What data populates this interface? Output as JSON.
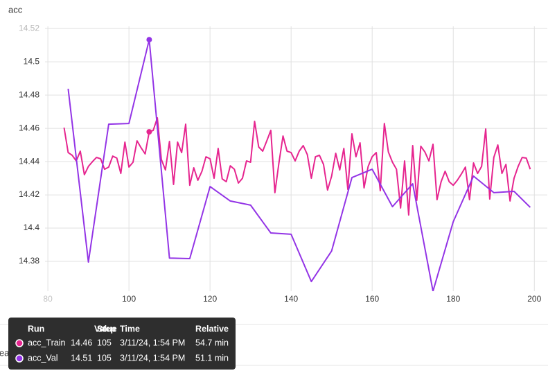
{
  "chart_data": {
    "type": "line",
    "title": "acc",
    "xlim": [
      79.3,
      203.2
    ],
    "xticks": [
      80,
      100,
      120,
      140,
      160,
      180,
      200
    ],
    "ylim": [
      14.3621,
      14.5213
    ],
    "yticks": [
      14.38,
      14.4,
      14.42,
      14.44,
      14.46,
      14.48,
      14.5,
      14.52
    ],
    "grid": true,
    "series": [
      {
        "name": "acc_Train",
        "color": "#e6258f",
        "x": [
          84,
          85,
          86,
          87,
          88,
          89,
          90,
          91,
          92,
          93,
          94,
          95,
          96,
          97,
          98,
          99,
          100,
          101,
          102,
          103,
          104,
          105,
          106,
          107,
          108,
          109,
          110,
          111,
          112,
          113,
          114,
          115,
          116,
          117,
          118,
          119,
          120,
          121,
          122,
          123,
          124,
          125,
          126,
          127,
          128,
          129,
          130,
          131,
          132,
          133,
          134,
          135,
          136,
          137,
          138,
          139,
          140,
          141,
          142,
          143,
          144,
          145,
          146,
          147,
          148,
          149,
          150,
          151,
          152,
          153,
          154,
          155,
          156,
          157,
          158,
          159,
          160,
          161,
          162,
          163,
          164,
          165,
          166,
          167,
          168,
          169,
          170,
          171,
          172,
          173,
          174,
          175,
          176,
          177,
          178,
          179,
          180,
          181,
          182,
          183,
          184,
          185,
          186,
          187,
          188,
          189,
          190,
          191,
          192,
          193,
          194,
          195,
          196,
          197,
          198,
          199
        ],
        "values": [
          14.4604,
          14.4454,
          14.4438,
          14.4404,
          14.4463,
          14.4321,
          14.4371,
          14.44,
          14.4425,
          14.4417,
          14.4354,
          14.4367,
          14.4433,
          14.4421,
          14.4329,
          14.4517,
          14.4367,
          14.4396,
          14.4525,
          14.4483,
          14.4446,
          14.4579,
          14.4588,
          14.4663,
          14.4413,
          14.435,
          14.4521,
          14.4263,
          14.4517,
          14.4454,
          14.4625,
          14.4258,
          14.4363,
          14.4288,
          14.4342,
          14.4429,
          14.4417,
          14.43,
          14.4479,
          14.4296,
          14.4279,
          14.4375,
          14.4354,
          14.4271,
          14.43,
          14.4404,
          14.4396,
          14.4642,
          14.4488,
          14.4463,
          14.4525,
          14.4588,
          14.4213,
          14.4392,
          14.4554,
          14.4463,
          14.4454,
          14.4404,
          14.4463,
          14.4496,
          14.4442,
          14.43,
          14.4429,
          14.4438,
          14.4383,
          14.4229,
          14.4313,
          14.445,
          14.435,
          14.4479,
          14.4233,
          14.4567,
          14.4429,
          14.4513,
          14.4242,
          14.4371,
          14.4429,
          14.4454,
          14.4225,
          14.4629,
          14.4458,
          14.4396,
          14.4354,
          14.4121,
          14.4404,
          14.4079,
          14.4496,
          14.4167,
          14.4492,
          14.4458,
          14.4404,
          14.4504,
          14.4171,
          14.4279,
          14.4342,
          14.4279,
          14.4258,
          14.4288,
          14.4325,
          14.4367,
          14.4171,
          14.4392,
          14.4329,
          14.4371,
          14.4596,
          14.4175,
          14.4425,
          14.45,
          14.4329,
          14.4383,
          14.4163,
          14.43,
          14.4371,
          14.4425,
          14.4421,
          14.4354
        ]
      },
      {
        "name": "acc_Val",
        "color": "#9334e6",
        "x": [
          85,
          90,
          95,
          100,
          105,
          110,
          115,
          120,
          125,
          130,
          135,
          140,
          145,
          150,
          155,
          160,
          165,
          170,
          175,
          180,
          185,
          190,
          195,
          199
        ],
        "values": [
          14.4838,
          14.3796,
          14.4625,
          14.4629,
          14.5133,
          14.382,
          14.3817,
          14.425,
          14.4163,
          14.4138,
          14.3971,
          14.3963,
          14.3679,
          14.3863,
          14.4304,
          14.4354,
          14.4129,
          14.4267,
          14.3621,
          14.4038,
          14.4313,
          14.4213,
          14.4221,
          14.4125
        ]
      }
    ],
    "tooltip": {
      "headers": [
        "Run",
        "Value",
        "Step",
        "Time",
        "Relative"
      ],
      "rows": [
        [
          "acc_Train",
          14.46,
          105,
          "3/11/24, 1:54 PM",
          "54.7 min"
        ],
        [
          "acc_Val",
          14.51,
          105,
          "3/11/24, 1:54 PM",
          "51.1 min"
        ]
      ]
    },
    "next_card_title": "learning_rate"
  }
}
